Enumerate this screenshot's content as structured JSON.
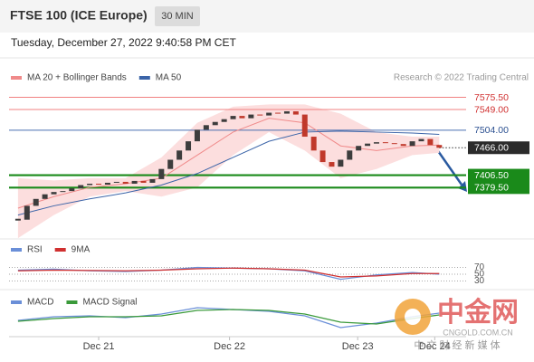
{
  "header": {
    "title": "FTSE 100 (ICE Europe)",
    "interval": "30 MIN",
    "timestamp": "Tuesday, December 27, 2022 9:40:58 PM CET"
  },
  "chart_data": [
    {
      "type": "candlestick",
      "credit": "Research © 2022 Trading Central",
      "up_color": "#3d3d3d",
      "down_color": "#c0392b",
      "close": [
        7310,
        7340,
        7355,
        7365,
        7370,
        7372,
        7378,
        7385,
        7388,
        7386,
        7390,
        7392,
        7388,
        7394,
        7390,
        7398,
        7420,
        7440,
        7460,
        7480,
        7505,
        7515,
        7522,
        7528,
        7535,
        7530,
        7538,
        7536,
        7542,
        7540,
        7545,
        7538,
        7490,
        7460,
        7435,
        7425,
        7440,
        7460,
        7470,
        7475,
        7478,
        7476,
        7474,
        7470,
        7480,
        7485,
        7472,
        7466
      ],
      "ylim": [
        7280,
        7600
      ],
      "xlim": [
        -1,
        50
      ],
      "xticks": [
        {
          "value": 9,
          "label": "Dec 21"
        },
        {
          "value": 23.6,
          "label": "Dec 22"
        },
        {
          "value": 37.9,
          "label": "Dec 23"
        },
        {
          "value": 46.5,
          "label": "Dec 24"
        }
      ],
      "overlays": [
        {
          "name": "MA 20 + Bollinger Bands",
          "color": "#f08a8a",
          "band_color": "#fcdede",
          "x": [
            0,
            4,
            8,
            12,
            16,
            20,
            24,
            28,
            32,
            36,
            40,
            44,
            47
          ],
          "values": [
            7335,
            7360,
            7380,
            7388,
            7400,
            7450,
            7500,
            7530,
            7520,
            7470,
            7460,
            7470,
            7472
          ],
          "upper": [
            7400,
            7395,
            7400,
            7400,
            7445,
            7520,
            7555,
            7560,
            7560,
            7540,
            7500,
            7490,
            7490
          ],
          "lower": [
            7270,
            7320,
            7360,
            7372,
            7360,
            7380,
            7450,
            7500,
            7460,
            7400,
            7420,
            7450,
            7455
          ]
        },
        {
          "name": "MA 50",
          "color": "#3b64a8",
          "x": [
            0,
            4,
            8,
            12,
            16,
            20,
            24,
            28,
            32,
            36,
            40,
            44,
            47
          ],
          "values": [
            7320,
            7340,
            7355,
            7368,
            7385,
            7410,
            7445,
            7480,
            7500,
            7502,
            7500,
            7498,
            7495
          ]
        }
      ],
      "levels": [
        {
          "value": 7575.5,
          "label": "7575.50",
          "color": "#f08080",
          "text_color": "#d03030",
          "label_bg": "#ffffff",
          "style": "solid"
        },
        {
          "value": 7549,
          "label": "7549.00",
          "color": "#f08080",
          "text_color": "#d03030",
          "label_bg": "#ffffff",
          "style": "solid"
        },
        {
          "value": 7504,
          "label": "7504.00",
          "color": "#4a6fb0",
          "text_color": "#2a4f90",
          "label_bg": "#ffffff",
          "style": "solid"
        },
        {
          "value": 7466,
          "label": "7466.00",
          "color": "#333333",
          "text_color": "#ffffff",
          "label_bg": "#2b2b2b",
          "style": "dotted"
        },
        {
          "value": 7406.5,
          "label": "7406.50",
          "color": "#1a8a1a",
          "text_color": "#ffffff",
          "label_bg": "#1a8a1a",
          "style": "thick"
        },
        {
          "value": 7379.5,
          "label": "7379.50",
          "color": "#1a8a1a",
          "text_color": "#ffffff",
          "label_bg": "#1a8a1a",
          "style": "thick"
        }
      ]
    },
    {
      "type": "line",
      "x": [
        0,
        4,
        8,
        12,
        16,
        20,
        24,
        28,
        32,
        36,
        40,
        44,
        47
      ],
      "ylim": [
        10,
        90
      ],
      "yticks": [
        70,
        50,
        30
      ],
      "series": [
        {
          "name": "RSI",
          "color": "#6a8fd8",
          "values": [
            62,
            65,
            60,
            58,
            62,
            70,
            68,
            66,
            60,
            35,
            48,
            55,
            50
          ]
        },
        {
          "name": "9MA",
          "color": "#d03030",
          "values": [
            60,
            62,
            61,
            60,
            62,
            66,
            68,
            66,
            62,
            42,
            45,
            52,
            52
          ]
        }
      ]
    },
    {
      "type": "line",
      "x": [
        0,
        4,
        8,
        12,
        16,
        20,
        24,
        28,
        32,
        36,
        40,
        44,
        47
      ],
      "ylim": [
        -20,
        20
      ],
      "series": [
        {
          "name": "MACD",
          "color": "#6a8fd8",
          "values": [
            -2,
            2,
            3,
            1,
            5,
            12,
            10,
            8,
            3,
            -10,
            -5,
            2,
            6
          ]
        },
        {
          "name": "MACD Signal",
          "color": "#3a9a3a",
          "values": [
            -3,
            0,
            2,
            2,
            3,
            9,
            10,
            9,
            5,
            -4,
            -6,
            0,
            4
          ]
        }
      ]
    }
  ],
  "watermark": {
    "title": "中金网",
    "url": "CNGOLD.COM.CN",
    "tagline": "中 文 财 经 新 媒 体"
  }
}
